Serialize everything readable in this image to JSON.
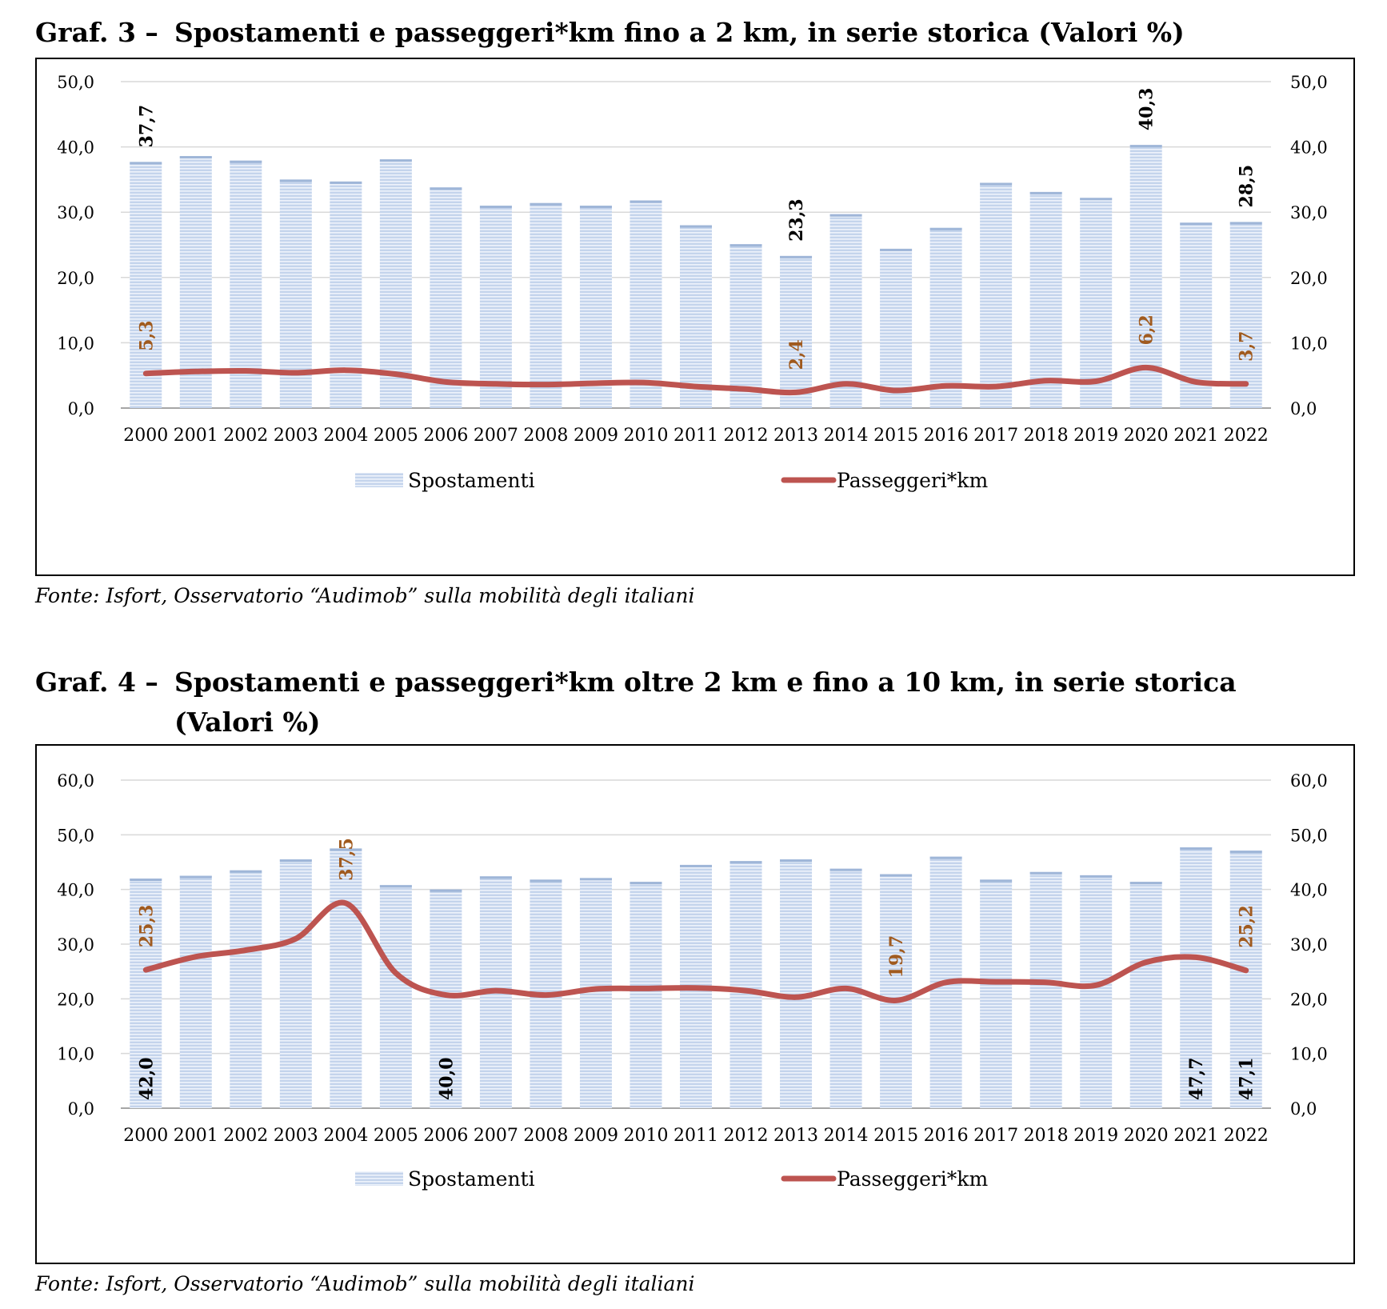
{
  "palette": {
    "bar_fill": "#c4d4ec",
    "bar_stripe": "#eef3fb",
    "bar_top": "#9fb6d8",
    "line": "#bd5450",
    "line_label": "#a05a1e",
    "axis": "#a6a6a6",
    "grid": "#d9d9d9"
  },
  "charts": [
    {
      "id": "graf3",
      "title_label": "Graf. 3 –",
      "title_text": "Spostamenti e passeggeri*km fino a 2 km, in serie storica (Valori %)",
      "source": "Fonte: Isfort, Osservatorio “Audimob” sulla mobilità degli italiani"
    },
    {
      "id": "graf4",
      "title_label": "Graf. 4 –",
      "title_text_line1": "Spostamenti e passeggeri*km oltre 2 km e fino a 10 km, in serie storica",
      "title_text_line2": "(Valori %)",
      "source": "Fonte: Isfort, Osservatorio “Audimob” sulla mobilità degli italiani"
    }
  ],
  "chart_data": [
    {
      "type": "bar",
      "combo": "bar+line",
      "title": "Graf. 3 – Spostamenti e passeggeri*km fino a 2 km, in serie storica (Valori %)",
      "categories": [
        "2000",
        "2001",
        "2002",
        "2003",
        "2004",
        "2005",
        "2006",
        "2007",
        "2008",
        "2009",
        "2010",
        "2011",
        "2012",
        "2013",
        "2014",
        "2015",
        "2016",
        "2017",
        "2018",
        "2019",
        "2020",
        "2021",
        "2022"
      ],
      "series": [
        {
          "name": "Spostamenti",
          "type": "bar",
          "values": [
            37.7,
            38.6,
            37.9,
            35.0,
            34.7,
            38.1,
            33.8,
            31.0,
            31.4,
            31.0,
            31.8,
            28.0,
            25.1,
            23.3,
            29.7,
            24.4,
            27.6,
            34.5,
            33.1,
            32.2,
            40.3,
            28.4,
            28.5
          ],
          "labels": {
            "0": "37,7",
            "13": "23,3",
            "20": "40,3",
            "22": "28,5"
          }
        },
        {
          "name": "Passeggeri*km",
          "type": "line",
          "values": [
            5.3,
            5.6,
            5.7,
            5.4,
            5.8,
            5.2,
            4.0,
            3.7,
            3.6,
            3.8,
            3.9,
            3.3,
            2.9,
            2.4,
            3.7,
            2.7,
            3.4,
            3.3,
            4.2,
            4.1,
            6.2,
            4.0,
            3.7
          ],
          "labels": {
            "0": "5,3",
            "13": "2,4",
            "20": "6,2",
            "22": "3,7"
          }
        }
      ],
      "ylim": [
        0,
        50
      ],
      "yticks": [
        "0,0",
        "10,0",
        "20,0",
        "30,0",
        "40,0",
        "50,0"
      ],
      "xlabel": "",
      "ylabel": "",
      "legend": "bottom-center",
      "grid": true
    },
    {
      "type": "bar",
      "combo": "bar+line",
      "title": "Graf. 4 – Spostamenti e passeggeri*km oltre 2 km e fino a 10 km, in serie storica (Valori %)",
      "categories": [
        "2000",
        "2001",
        "2002",
        "2003",
        "2004",
        "2005",
        "2006",
        "2007",
        "2008",
        "2009",
        "2010",
        "2011",
        "2012",
        "2013",
        "2014",
        "2015",
        "2016",
        "2017",
        "2018",
        "2019",
        "2020",
        "2021",
        "2022"
      ],
      "series": [
        {
          "name": "Spostamenti",
          "type": "bar",
          "values": [
            42.0,
            42.5,
            43.5,
            45.5,
            47.5,
            40.8,
            40.0,
            42.4,
            41.8,
            42.1,
            41.4,
            44.5,
            45.2,
            45.5,
            43.8,
            42.8,
            46.0,
            41.8,
            43.2,
            42.6,
            41.4,
            47.7,
            47.1
          ],
          "labels": {
            "0": "42,0",
            "6": "40,0",
            "21": "47,7",
            "22": "47,1"
          }
        },
        {
          "name": "Passeggeri*km",
          "type": "line",
          "values": [
            25.3,
            27.7,
            28.9,
            31.0,
            37.5,
            24.7,
            20.7,
            21.5,
            20.7,
            21.8,
            21.9,
            22.0,
            21.5,
            20.3,
            21.9,
            19.7,
            23.0,
            23.1,
            23.0,
            22.5,
            26.7,
            27.6,
            25.2
          ],
          "labels": {
            "0": "25,3",
            "4": "37,5",
            "15": "19,7",
            "22": "25,2"
          }
        }
      ],
      "ylim": [
        0,
        60
      ],
      "yticks": [
        "0,0",
        "10,0",
        "20,0",
        "30,0",
        "40,0",
        "50,0",
        "60,0"
      ],
      "xlabel": "",
      "ylabel": "",
      "legend": "bottom-center",
      "grid": true
    }
  ]
}
